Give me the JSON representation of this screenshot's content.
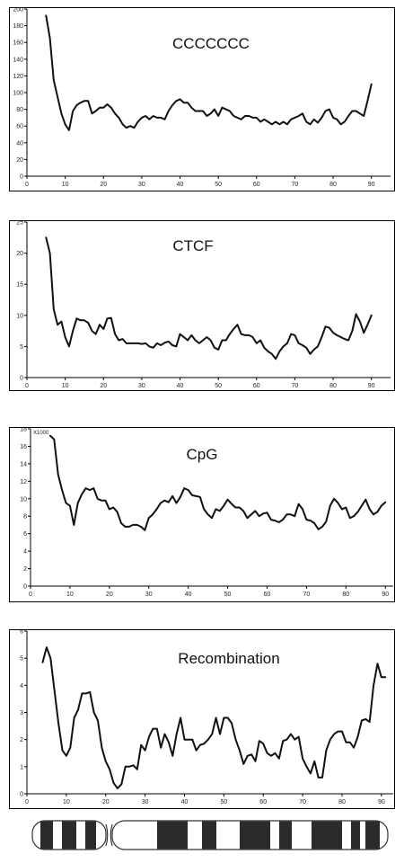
{
  "chart_data": [
    {
      "type": "line",
      "title": "CCCCCCC",
      "xlim": [
        0,
        95
      ],
      "ylim": [
        0,
        200
      ],
      "xticks": [
        0,
        10,
        20,
        30,
        40,
        50,
        60,
        70,
        80,
        90
      ],
      "yticks": [
        0,
        20,
        40,
        60,
        80,
        100,
        120,
        140,
        160,
        180,
        200
      ],
      "series": [
        {
          "x": [
            5,
            6,
            7,
            8,
            9,
            10,
            11,
            12,
            13,
            14,
            15,
            16,
            17,
            18,
            19,
            20,
            21,
            22,
            23,
            24,
            25,
            26,
            27,
            28,
            29,
            30,
            31,
            32,
            33,
            34,
            35,
            36,
            37,
            38,
            39,
            40,
            41,
            42,
            43,
            44,
            45,
            46,
            47,
            48,
            49,
            50,
            51,
            52,
            53,
            54,
            55,
            56,
            57,
            58,
            59,
            60,
            61,
            62,
            63,
            64,
            65,
            66,
            67,
            68,
            69,
            70,
            71,
            72,
            73,
            74,
            75,
            76,
            77,
            78,
            79,
            80,
            81,
            82,
            83,
            84,
            85,
            86,
            87,
            88,
            89,
            90
          ],
          "y": [
            192,
            165,
            115,
            95,
            75,
            62,
            55,
            78,
            85,
            88,
            90,
            90,
            75,
            78,
            82,
            82,
            86,
            82,
            75,
            70,
            62,
            58,
            60,
            58,
            65,
            70,
            72,
            68,
            72,
            70,
            70,
            68,
            78,
            85,
            90,
            92,
            88,
            88,
            82,
            78,
            78,
            78,
            72,
            75,
            80,
            72,
            82,
            80,
            78,
            72,
            70,
            68,
            72,
            72,
            70,
            70,
            65,
            68,
            65,
            62,
            65,
            62,
            65,
            62,
            68,
            70,
            72,
            75,
            65,
            62,
            68,
            64,
            70,
            78,
            80,
            70,
            68,
            62,
            65,
            72,
            78,
            78,
            75,
            72,
            90,
            110
          ]
        }
      ]
    },
    {
      "type": "line",
      "title": "CTCF",
      "xlim": [
        0,
        95
      ],
      "ylim": [
        0,
        25
      ],
      "xticks": [
        0,
        10,
        20,
        30,
        40,
        50,
        60,
        70,
        80,
        90
      ],
      "yticks": [
        0,
        5,
        10,
        15,
        20,
        25
      ],
      "series": [
        {
          "x": [
            5,
            6,
            7,
            8,
            9,
            10,
            11,
            12,
            13,
            14,
            15,
            16,
            17,
            18,
            19,
            20,
            21,
            22,
            23,
            24,
            25,
            26,
            27,
            28,
            29,
            30,
            31,
            32,
            33,
            34,
            35,
            36,
            37,
            38,
            39,
            40,
            41,
            42,
            43,
            44,
            45,
            46,
            47,
            48,
            49,
            50,
            51,
            52,
            53,
            54,
            55,
            56,
            57,
            58,
            59,
            60,
            61,
            62,
            63,
            64,
            65,
            66,
            67,
            68,
            69,
            70,
            71,
            72,
            73,
            74,
            75,
            76,
            77,
            78,
            79,
            80,
            81,
            82,
            83,
            84,
            85,
            86,
            87,
            88,
            89,
            90
          ],
          "y": [
            22.5,
            20,
            11,
            8.5,
            9,
            6.5,
            5,
            7.5,
            9.5,
            9.2,
            9.2,
            8.8,
            7.5,
            7,
            8.5,
            7.8,
            9.5,
            9.6,
            7,
            6,
            6.2,
            5.5,
            5.5,
            5.5,
            5.5,
            5.4,
            5.5,
            5,
            4.8,
            5.5,
            5.2,
            5.6,
            5.8,
            5.2,
            5,
            7,
            6.5,
            6,
            6.8,
            6,
            5.5,
            6,
            6.5,
            6,
            4.8,
            4.5,
            6,
            6,
            7,
            7.8,
            8.5,
            7,
            6.8,
            6.8,
            6.5,
            5.5,
            6,
            4.8,
            4.2,
            3.8,
            3,
            4.2,
            5,
            5.5,
            7,
            6.8,
            5.5,
            5.2,
            4.8,
            3.8,
            4.5,
            5,
            6.5,
            8.2,
            8,
            7.2,
            6.8,
            6.5,
            6.2,
            6,
            7.5,
            10.2,
            9,
            7.2,
            8.5,
            10
          ]
        }
      ]
    },
    {
      "type": "line",
      "title": "CpG",
      "multiplier": "X1000",
      "xlim": [
        0,
        92
      ],
      "ylim": [
        0,
        18
      ],
      "xticks": [
        0,
        10,
        20,
        30,
        40,
        50,
        60,
        70,
        80,
        90
      ],
      "yticks": [
        0,
        2,
        4,
        6,
        8,
        10,
        12,
        14,
        16,
        18
      ],
      "series": [
        {
          "x": [
            5,
            6,
            7,
            8,
            9,
            10,
            11,
            12,
            13,
            14,
            15,
            16,
            17,
            18,
            19,
            20,
            21,
            22,
            23,
            24,
            25,
            26,
            27,
            28,
            29,
            30,
            31,
            32,
            33,
            34,
            35,
            36,
            37,
            38,
            39,
            40,
            41,
            42,
            43,
            44,
            45,
            46,
            47,
            48,
            49,
            50,
            51,
            52,
            53,
            54,
            55,
            56,
            57,
            58,
            59,
            60,
            61,
            62,
            63,
            64,
            65,
            66,
            67,
            68,
            69,
            70,
            71,
            72,
            73,
            74,
            75,
            76,
            77,
            78,
            79,
            80,
            81,
            82,
            83,
            84,
            85,
            86,
            87,
            88,
            89,
            90
          ],
          "y": [
            17.2,
            16.8,
            12.8,
            11,
            9.5,
            9.2,
            7,
            9.5,
            10.5,
            11.2,
            11,
            11.2,
            10,
            9.8,
            9.8,
            8.8,
            9,
            8.5,
            7.2,
            6.8,
            6.8,
            7,
            7,
            6.8,
            6.4,
            7.8,
            8.2,
            8.8,
            9.5,
            9.8,
            9.6,
            10.3,
            9.5,
            10.2,
            11.2,
            11,
            10.4,
            10.3,
            10.2,
            8.8,
            8.2,
            7.8,
            8.8,
            8.6,
            9.2,
            9.9,
            9.4,
            9,
            9,
            8.6,
            7.8,
            8.2,
            8.6,
            8,
            8.3,
            8.4,
            7.6,
            7.5,
            7.3,
            7.6,
            8.2,
            8.2,
            8,
            9.4,
            8.8,
            7.6,
            7.5,
            7.2,
            6.5,
            6.8,
            7.4,
            9.2,
            10,
            9.5,
            8.8,
            9,
            7.8,
            8,
            8.5,
            9.2,
            9.9,
            8.8,
            8.2,
            8.5,
            9.2,
            9.6
          ]
        }
      ]
    },
    {
      "type": "line",
      "title": "Recombination",
      "xlim": [
        0,
        93
      ],
      "ylim": [
        0,
        6
      ],
      "xticks": [
        0,
        10,
        20,
        30,
        40,
        50,
        60,
        70,
        80,
        90
      ],
      "yticks": [
        0,
        1,
        2,
        3,
        4,
        5,
        6
      ],
      "series": [
        {
          "x": [
            4,
            5,
            6,
            7,
            8,
            9,
            10,
            11,
            12,
            13,
            14,
            15,
            16,
            17,
            18,
            19,
            20,
            21,
            22,
            23,
            24,
            25,
            26,
            27,
            28,
            29,
            30,
            31,
            32,
            33,
            34,
            35,
            36,
            37,
            38,
            39,
            40,
            41,
            42,
            43,
            44,
            45,
            46,
            47,
            48,
            49,
            50,
            51,
            52,
            53,
            54,
            55,
            56,
            57,
            58,
            59,
            60,
            61,
            62,
            63,
            64,
            65,
            66,
            67,
            68,
            69,
            70,
            71,
            72,
            73,
            74,
            75,
            76,
            77,
            78,
            79,
            80,
            81,
            82,
            83,
            84,
            85,
            86,
            87,
            88,
            89,
            90,
            91
          ],
          "y": [
            4.85,
            5.4,
            5,
            3.8,
            2.6,
            1.6,
            1.4,
            1.7,
            2.8,
            3.1,
            3.7,
            3.7,
            3.75,
            3,
            2.7,
            1.7,
            1.2,
            0.9,
            0.4,
            0.2,
            0.35,
            1.0,
            1.0,
            1.05,
            0.9,
            1.8,
            1.6,
            2.1,
            2.4,
            2.4,
            1.7,
            2.2,
            1.9,
            1.4,
            2.2,
            2.8,
            2.0,
            2.0,
            2.0,
            1.6,
            1.8,
            1.85,
            2.0,
            2.2,
            2.8,
            2.2,
            2.8,
            2.8,
            2.6,
            2.0,
            1.6,
            1.1,
            1.4,
            1.45,
            1.2,
            1.95,
            1.85,
            1.5,
            1.4,
            1.5,
            1.3,
            1.95,
            2.0,
            2.2,
            2.0,
            2.1,
            1.3,
            1.0,
            0.75,
            1.2,
            0.6,
            0.6,
            1.6,
            2.0,
            2.2,
            2.3,
            2.3,
            1.9,
            1.9,
            1.7,
            2.1,
            2.7,
            2.75,
            2.65,
            4.0,
            4.8,
            4.3,
            4.3
          ]
        }
      ]
    }
  ],
  "ideogram": {
    "description_free": true,
    "colors": {
      "dark": "#2b2b2b",
      "light": "#ffffff",
      "outline": "#333333"
    }
  }
}
